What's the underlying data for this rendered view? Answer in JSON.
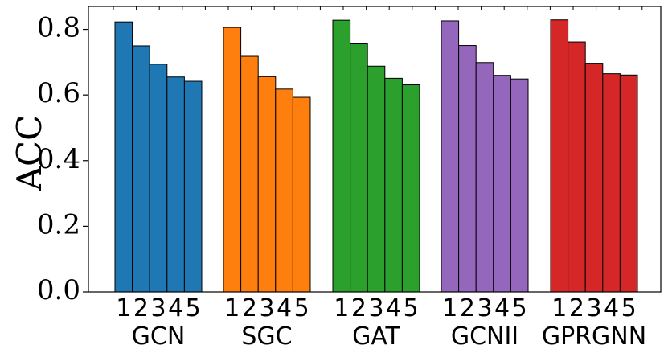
{
  "chart_data": {
    "type": "bar",
    "ylabel": "ACC",
    "ylim": [
      0,
      0.87
    ],
    "yticks": [
      "0.0",
      "0.2",
      "0.4",
      "0.6",
      "0.8"
    ],
    "subcategories": [
      "1",
      "2",
      "3",
      "4",
      "5"
    ],
    "groups": [
      {
        "name": "GCN",
        "color": "#1f77b4",
        "values": [
          0.823,
          0.75,
          0.694,
          0.655,
          0.642
        ]
      },
      {
        "name": "SGC",
        "color": "#ff7f0e",
        "values": [
          0.806,
          0.718,
          0.656,
          0.618,
          0.593
        ]
      },
      {
        "name": "GAT",
        "color": "#2ca02c",
        "values": [
          0.828,
          0.756,
          0.688,
          0.651,
          0.631
        ]
      },
      {
        "name": "GCNII",
        "color": "#9467bd",
        "values": [
          0.826,
          0.751,
          0.699,
          0.66,
          0.649
        ]
      },
      {
        "name": "GPRGNN",
        "color": "#d62728",
        "values": [
          0.829,
          0.762,
          0.697,
          0.665,
          0.661
        ]
      }
    ],
    "grid": false,
    "legend": "none"
  }
}
